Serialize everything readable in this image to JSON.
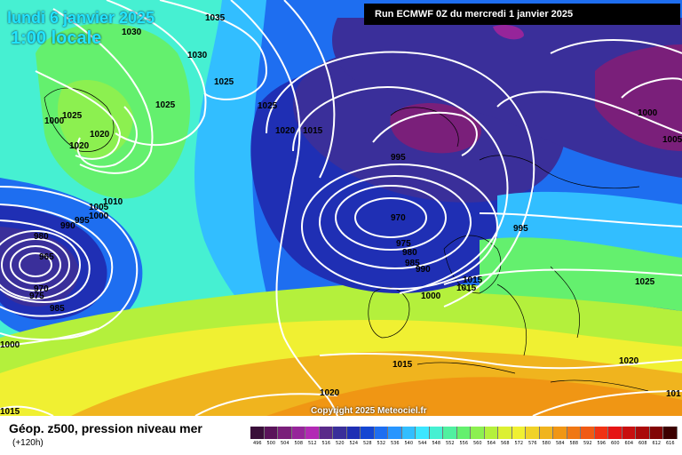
{
  "header": {
    "date": "lundi 6 janvier 2025",
    "time": "1:00 locale",
    "run": "Run ECMWF 0Z du mercredi 1 janvier 2025",
    "copyright": "Copyright 2025 Meteociel.fr"
  },
  "footer": {
    "title": "Géop. z500, pression niveau mer",
    "lead": "(+120h)"
  },
  "scale": {
    "labels": [
      "496",
      "500",
      "504",
      "508",
      "512",
      "516",
      "520",
      "524",
      "528",
      "532",
      "536",
      "540",
      "544",
      "548",
      "552",
      "556",
      "560",
      "564",
      "568",
      "572",
      "576",
      "580",
      "584",
      "588",
      "592",
      "596",
      "600",
      "604",
      "608",
      "612",
      "616"
    ],
    "colors": [
      "#3a0f3a",
      "#5a145a",
      "#7a1f7a",
      "#96259a",
      "#b22ab4",
      "#5a2a8a",
      "#3a2f9a",
      "#1f2fb4",
      "#1446d2",
      "#1e6ef0",
      "#2896ff",
      "#32beff",
      "#3ce6ff",
      "#46f0d2",
      "#50f0a0",
      "#64f06e",
      "#8cf050",
      "#b4f03c",
      "#dcf032",
      "#f0f032",
      "#f0d228",
      "#f0b41e",
      "#f09614",
      "#f07814",
      "#f05a14",
      "#f03214",
      "#e61414",
      "#c80f0f",
      "#aa0a0a",
      "#820505",
      "#3c0000"
    ]
  },
  "isobars": {
    "labels": [
      "1035",
      "1030",
      "1030",
      "1025",
      "1025",
      "1020",
      "1020",
      "1025",
      "1025",
      "1020",
      "1015",
      "1010",
      "1005",
      "1000",
      "995",
      "990",
      "980",
      "965",
      "970",
      "975",
      "985",
      "1000",
      "995",
      "970",
      "975",
      "980",
      "985",
      "990",
      "1000",
      "1015",
      "1015",
      "1000",
      "1005",
      "995",
      "1025",
      "1015",
      "1020",
      "1020",
      "1015",
      "101",
      "1000"
    ]
  }
}
